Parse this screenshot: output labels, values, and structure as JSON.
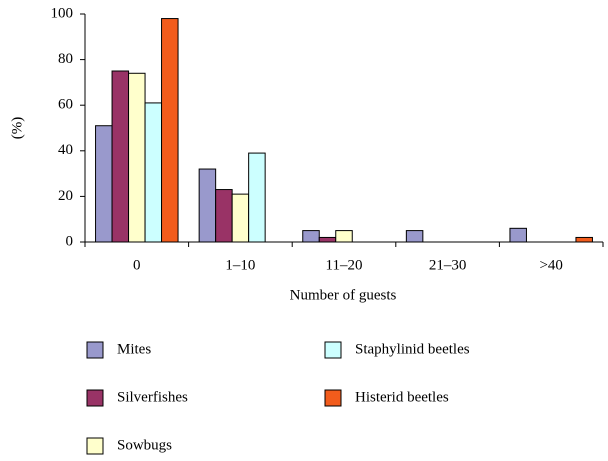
{
  "chart_data": {
    "type": "bar",
    "y_label": "(%)",
    "x_label": "Number of guests",
    "categories": [
      "0",
      "1–10",
      "11–20",
      "21–30",
      ">40"
    ],
    "series": [
      {
        "name": "Mites",
        "color": "#9999cc",
        "values": [
          51,
          32,
          5,
          5,
          6
        ]
      },
      {
        "name": "Silverfishes",
        "color": "#993366",
        "values": [
          75,
          23,
          2,
          0,
          0
        ]
      },
      {
        "name": "Sowbugs",
        "color": "#ffffcc",
        "values": [
          74,
          21,
          5,
          0,
          0
        ]
      },
      {
        "name": "Staphylinid beetles",
        "color": "#ccffff",
        "values": [
          61,
          39,
          0,
          0,
          0
        ]
      },
      {
        "name": "Histerid beetles",
        "color": "#f25c1c",
        "values": [
          98,
          0,
          0,
          0,
          2
        ]
      }
    ],
    "ylim": [
      0,
      100
    ],
    "yticks": [
      0,
      20,
      40,
      60,
      80,
      100
    ]
  }
}
